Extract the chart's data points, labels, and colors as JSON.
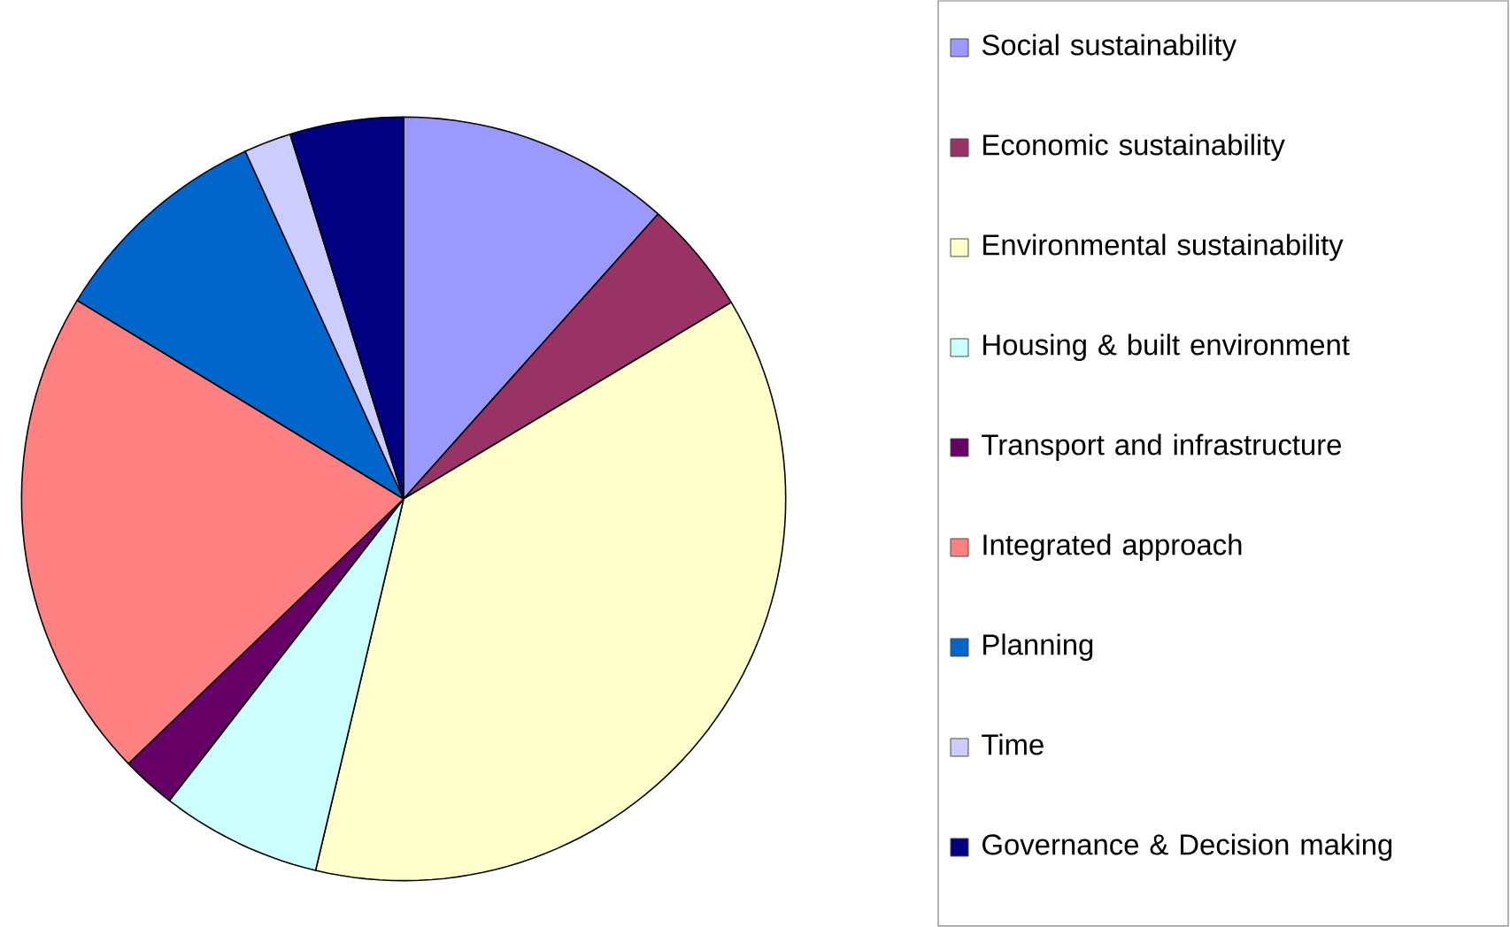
{
  "chart_data": {
    "type": "pie",
    "legend": "right",
    "categories": [
      "Social sustainability",
      "Economic sustainability",
      "Environmental sustainability",
      "Housing & built environment",
      "Transport and infrastructure",
      "Integrated approach",
      "Planning",
      "Time",
      "Governance & Decision making"
    ],
    "values": [
      11.6,
      4.8,
      37.3,
      6.8,
      2.3,
      20.9,
      9.5,
      2.0,
      4.8
    ],
    "colors": [
      "#9999ff",
      "#993366",
      "#ffffcc",
      "#ccffff",
      "#660066",
      "#ff8080",
      "#0066cc",
      "#ccccff",
      "#000080"
    ]
  }
}
